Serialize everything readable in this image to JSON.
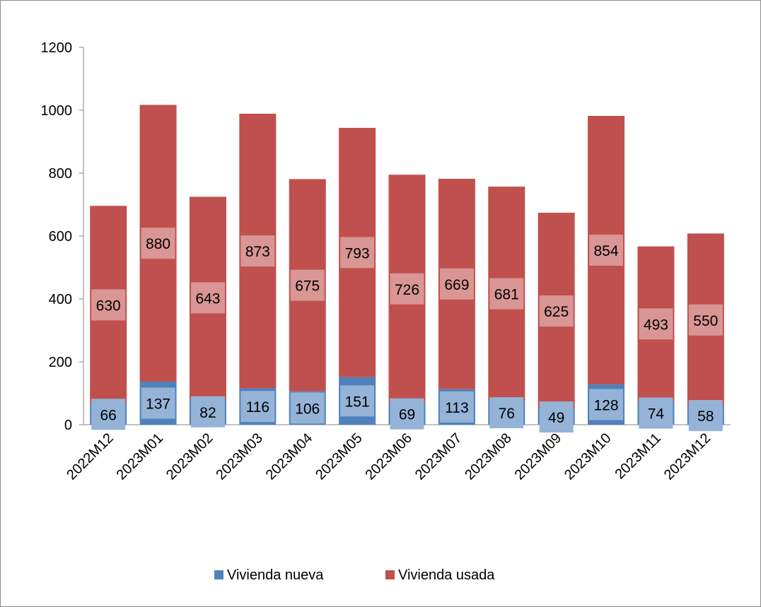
{
  "chart_data": {
    "type": "bar",
    "stacked": true,
    "categories": [
      "2022M12",
      "2023M01",
      "2023M02",
      "2023M03",
      "2023M04",
      "2023M05",
      "2023M06",
      "2023M07",
      "2023M08",
      "2023M09",
      "2023M10",
      "2023M11",
      "2023M12"
    ],
    "series": [
      {
        "name": "Vivienda nueva",
        "color": "#4f81bd",
        "label_bg": "#95b3d7",
        "values": [
          66,
          137,
          82,
          116,
          106,
          151,
          69,
          113,
          76,
          49,
          128,
          74,
          58
        ]
      },
      {
        "name": "Vivienda usada",
        "color": "#c0504d",
        "label_bg": "#d99694",
        "values": [
          630,
          880,
          643,
          873,
          675,
          793,
          726,
          669,
          681,
          625,
          854,
          493,
          550
        ]
      }
    ],
    "yticks": [
      "0",
      "200",
      "400",
      "600",
      "800",
      "1000",
      "1200"
    ],
    "ylim": [
      0,
      1200
    ],
    "grid": false,
    "legend_position": "bottom"
  }
}
